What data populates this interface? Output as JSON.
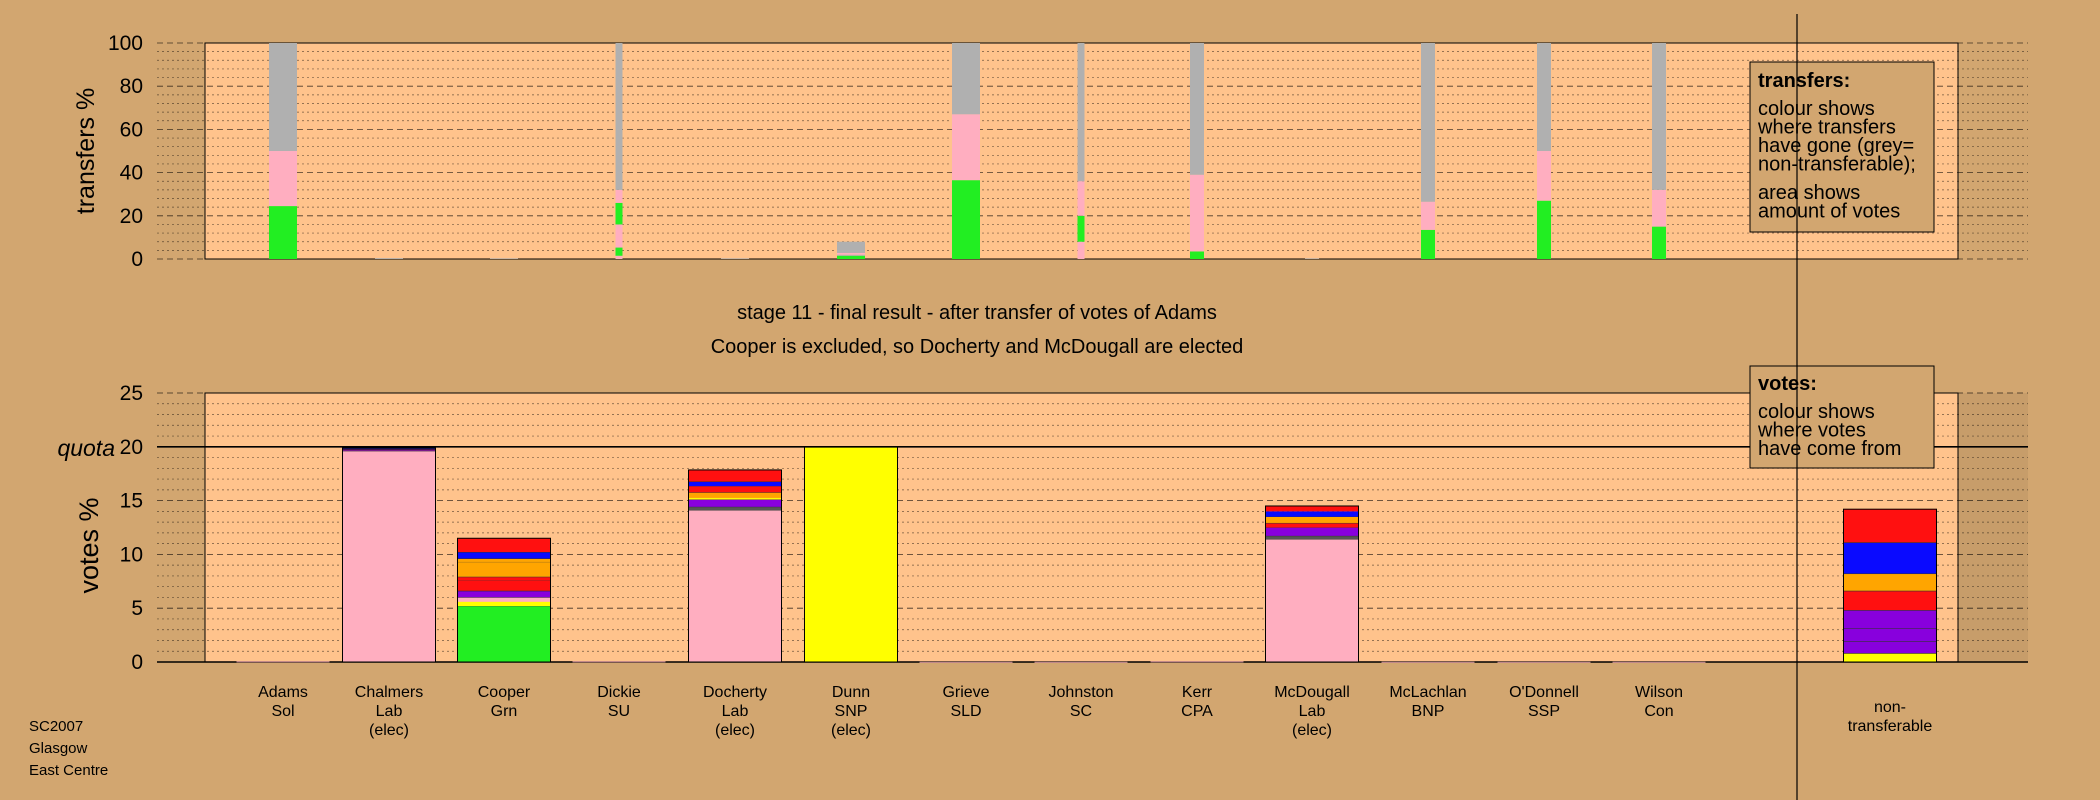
{
  "chart_data": [
    {
      "type": "bar",
      "variant": "stacked-thin",
      "ylabel": "transfers %",
      "ylim": [
        0,
        100
      ],
      "yticks": [
        0,
        20,
        40,
        60,
        80,
        100
      ],
      "grid": true,
      "categories": [
        "Adams Sol",
        "Chalmers Lab (elec)",
        "Cooper Grn",
        "Dickie SU",
        "Docherty Lab (elec)",
        "Dunn SNP (elec)",
        "Grieve SLD",
        "Johnston SC",
        "Kerr CPA",
        "McDougall Lab (elec)",
        "McLachlan BNP",
        "O'Donnell SSP",
        "Wilson Con"
      ],
      "bars": [
        {
          "width": "wide",
          "segments": [
            {
              "color": "#22ee22",
              "value": 24.5
            },
            {
              "color": "#ffaec0",
              "value": 25.5
            },
            {
              "color": "#b0b0b0",
              "value": 50
            }
          ]
        },
        {
          "width": "wide",
          "segments": [
            {
              "color": "#b0b0b0",
              "value": 0.4
            }
          ]
        },
        {
          "width": "wide",
          "segments": [
            {
              "color": "#b0b0b0",
              "value": 0.3
            }
          ]
        },
        {
          "width": "narrow",
          "segments": [
            {
              "color": "#ffaec0",
              "value": 1.5
            },
            {
              "color": "#22ee22",
              "value": 3.8
            },
            {
              "color": "#ffaec0",
              "value": 10.7
            },
            {
              "color": "#22ee22",
              "value": 10
            },
            {
              "color": "#ffaec0",
              "value": 6
            },
            {
              "color": "#b0b0b0",
              "value": 68
            }
          ]
        },
        {
          "width": "wide",
          "segments": [
            {
              "color": "#b0b0b0",
              "value": 0.3
            }
          ]
        },
        {
          "width": "wide",
          "segments": [
            {
              "color": "#22ee22",
              "value": 1.5
            },
            {
              "color": "#b0b0b0",
              "value": 0.5
            },
            {
              "color": "#ffaec0",
              "value": 0.8
            },
            {
              "color": "#b0b0b0",
              "value": 5.2
            }
          ]
        },
        {
          "width": "wide",
          "segments": [
            {
              "color": "#22ee22",
              "value": 36.5
            },
            {
              "color": "#ffaec0",
              "value": 30.5
            },
            {
              "color": "#b0b0b0",
              "value": 33
            }
          ]
        },
        {
          "width": "narrow",
          "segments": [
            {
              "color": "#ffaec0",
              "value": 8
            },
            {
              "color": "#22ee22",
              "value": 12
            },
            {
              "color": "#ffaec0",
              "value": 16
            },
            {
              "color": "#b0b0b0",
              "value": 64
            }
          ]
        },
        {
          "width": "medium",
          "segments": [
            {
              "color": "#22ee22",
              "value": 3.5
            },
            {
              "color": "#ffaec0",
              "value": 35.5
            },
            {
              "color": "#b0b0b0",
              "value": 61
            }
          ]
        },
        {
          "width": "medium",
          "segments": [
            {
              "color": "#b0b0b0",
              "value": 0.3
            }
          ]
        },
        {
          "width": "medium",
          "segments": [
            {
              "color": "#22ee22",
              "value": 13.5
            },
            {
              "color": "#ffaec0",
              "value": 13
            },
            {
              "color": "#b0b0b0",
              "value": 73.5
            }
          ]
        },
        {
          "width": "medium",
          "segments": [
            {
              "color": "#22ee22",
              "value": 27
            },
            {
              "color": "#ffaec0",
              "value": 23
            },
            {
              "color": "#b0b0b0",
              "value": 50
            }
          ]
        },
        {
          "width": "medium",
          "segments": [
            {
              "color": "#22ee22",
              "value": 15
            },
            {
              "color": "#ffaec0",
              "value": 17
            },
            {
              "color": "#b0b0b0",
              "value": 68
            }
          ]
        }
      ],
      "legend": {
        "title": "transfers:",
        "lines": [
          "colour shows",
          "where transfers",
          "have gone (grey=",
          "non-transferable);"
        ],
        "lines2": [
          "area shows",
          "amount of votes"
        ],
        "placement": "top-right"
      }
    },
    {
      "type": "bar",
      "variant": "stacked",
      "ylabel": "votes %",
      "ylim": [
        0,
        25
      ],
      "yticks": [
        0,
        5,
        10,
        15,
        20,
        25
      ],
      "quota": 20,
      "quota_label": "quota",
      "grid": true,
      "categories": [
        {
          "name": "Adams",
          "party": "Sol",
          "note": ""
        },
        {
          "name": "Chalmers",
          "party": "Lab",
          "note": "(elec)"
        },
        {
          "name": "Cooper",
          "party": "Grn",
          "note": ""
        },
        {
          "name": "Dickie",
          "party": "SU",
          "note": ""
        },
        {
          "name": "Docherty",
          "party": "Lab",
          "note": "(elec)"
        },
        {
          "name": "Dunn",
          "party": "SNP",
          "note": "(elec)"
        },
        {
          "name": "Grieve",
          "party": "SLD",
          "note": ""
        },
        {
          "name": "Johnston",
          "party": "SC",
          "note": ""
        },
        {
          "name": "Kerr",
          "party": "CPA",
          "note": ""
        },
        {
          "name": "McDougall",
          "party": "Lab",
          "note": "(elec)"
        },
        {
          "name": "McLachlan",
          "party": "BNP",
          "note": ""
        },
        {
          "name": "O'Donnell",
          "party": "SSP",
          "note": ""
        },
        {
          "name": "Wilson",
          "party": "Con",
          "note": ""
        },
        {
          "name": "",
          "party": "non-",
          "note": "transferable"
        }
      ],
      "bars": [
        [
          {
            "color": "#ffaec0",
            "value": 0.05
          }
        ],
        [
          {
            "color": "#ffaec0",
            "value": 19.6
          },
          {
            "color": "#7a1a8a",
            "value": 0.15
          },
          {
            "color": "#0a0a0a",
            "value": 0.1
          },
          {
            "color": "#2a2aff",
            "value": 0.05
          }
        ],
        [
          {
            "color": "#22ee22",
            "value": 5.2
          },
          {
            "color": "#ffff00",
            "value": 0.4
          },
          {
            "color": "#ffaec0",
            "value": 0.4
          },
          {
            "color": "#8800dd",
            "value": 0.6
          },
          {
            "color": "#ff1010",
            "value": 1.0
          },
          {
            "color": "#ff1010",
            "value": 0.3
          },
          {
            "color": "#ffa500",
            "value": 1.4
          },
          {
            "color": "#ffa500",
            "value": 0.3
          },
          {
            "color": "#0a0aff",
            "value": 0.6
          },
          {
            "color": "#ff1010",
            "value": 1.3
          }
        ],
        [
          {
            "color": "#ffaec0",
            "value": 0.05
          }
        ],
        [
          {
            "color": "#ffaec0",
            "value": 14.1
          },
          {
            "color": "#555555",
            "value": 0.3
          },
          {
            "color": "#8800dd",
            "value": 0.7
          },
          {
            "color": "#ffff00",
            "value": 0.15
          },
          {
            "color": "#ffa500",
            "value": 0.5
          },
          {
            "color": "#ff1010",
            "value": 0.6
          },
          {
            "color": "#0a0aff",
            "value": 0.4
          },
          {
            "color": "#ff1010",
            "value": 1.1
          }
        ],
        [
          {
            "color": "#ffff00",
            "value": 20.0
          }
        ],
        [
          {
            "color": "#ffaec0",
            "value": 0.02
          }
        ],
        [
          {
            "color": "#ffaec0",
            "value": 0.02
          }
        ],
        [
          {
            "color": "#ffaec0",
            "value": 0.05
          }
        ],
        [
          {
            "color": "#ffaec0",
            "value": 11.4
          },
          {
            "color": "#555555",
            "value": 0.3
          },
          {
            "color": "#8800dd",
            "value": 0.8
          },
          {
            "color": "#ff1010",
            "value": 0.4
          },
          {
            "color": "#ffa500",
            "value": 0.6
          },
          {
            "color": "#0a0aff",
            "value": 0.5
          },
          {
            "color": "#ff1010",
            "value": 0.5
          }
        ],
        [
          {
            "color": "#ffaec0",
            "value": 0.02
          }
        ],
        [
          {
            "color": "#ffaec0",
            "value": 0.02
          }
        ],
        [
          {
            "color": "#ffaec0",
            "value": 0.02
          }
        ],
        [
          {
            "color": "#ffff00",
            "value": 0.8
          },
          {
            "color": "#8800dd",
            "value": 1.1
          },
          {
            "color": "#8800dd",
            "value": 1.2
          },
          {
            "color": "#8800dd",
            "value": 1.7
          },
          {
            "color": "#ff1010",
            "value": 1.8
          },
          {
            "color": "#ffa500",
            "value": 1.6
          },
          {
            "color": "#0a0aff",
            "value": 2.9
          },
          {
            "color": "#ff1010",
            "value": 3.1
          }
        ]
      ],
      "legend": {
        "title": "votes:",
        "lines": [
          "colour shows",
          "where votes",
          "have come from"
        ],
        "placement": "top-right"
      }
    }
  ],
  "captions": {
    "stage": "stage 11 - final result - after transfer of votes of Adams",
    "outcome": "Cooper is excluded, so Docherty and McDougall are elected"
  },
  "footer": [
    "SC2007",
    "Glasgow",
    "East Centre"
  ],
  "colors": {
    "background": "#d2a670",
    "panel": "#ffc38c",
    "green": "#22ee22",
    "pink": "#ffaec0",
    "grey": "#b0b0b0",
    "yellow": "#ffff00"
  }
}
